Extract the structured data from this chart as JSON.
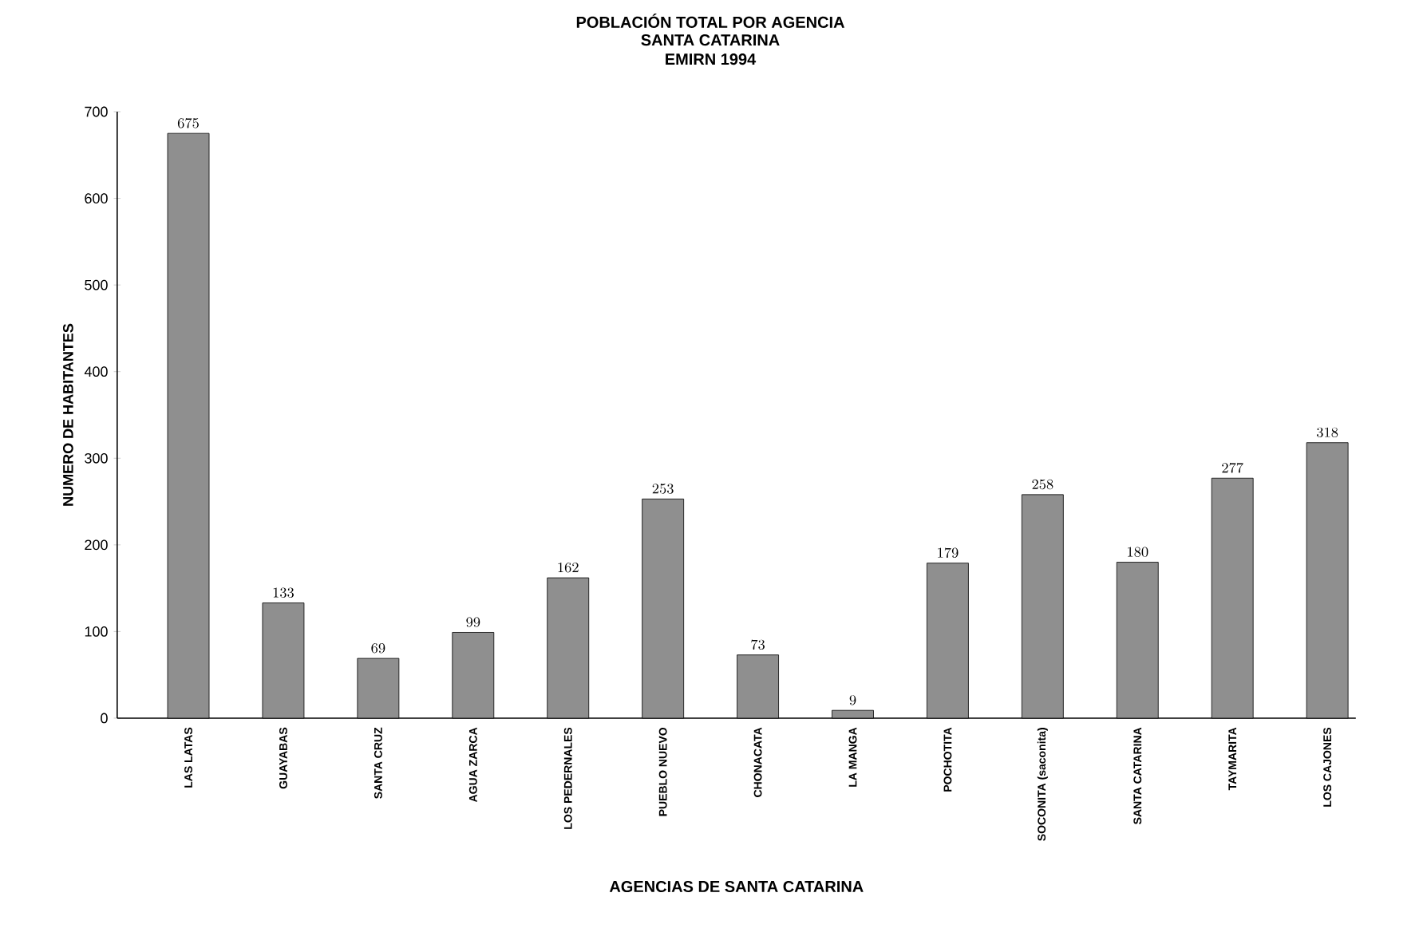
{
  "chart_data": {
    "type": "bar",
    "title": "POBLACIÓN TOTAL POR AGENCIA",
    "subtitle": "SANTA CATARINA\nEMIRN 1994",
    "xlabel": "AGENCIAS DE SANTA CATARINA",
    "ylabel": "NUMERO DE HABITANTES",
    "categories": [
      "LAS LATAS",
      "GUAYABAS",
      "SANTA CRUZ",
      "AGUA ZARCA",
      "LOS PEDERNALES",
      "PUEBLO NUEVO",
      "CHONACATA",
      "LA MANGA",
      "POCHOTITA",
      "SOCONITA   (saconita)",
      "SANTA CATARINA",
      "TAYMARITA",
      "LOS CAJONES"
    ],
    "values": [
      675,
      133,
      69,
      99,
      162,
      253,
      73,
      9,
      179,
      258,
      180,
      277,
      318
    ],
    "color": "#8f8f8f",
    "data_labels": true,
    "ylim": [
      0,
      700
    ],
    "yticks": [
      0,
      100,
      200,
      300,
      400,
      500,
      600,
      700
    ]
  }
}
